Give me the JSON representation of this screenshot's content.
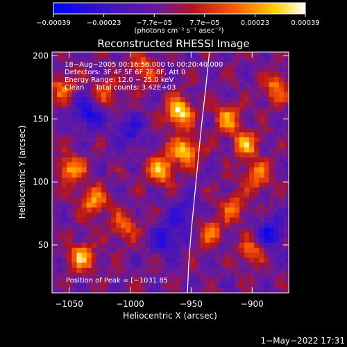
{
  "chart_data": {
    "type": "heatmap",
    "title": "Reconstructed RHESSI Image",
    "xlabel": "Heliocentric X (arcsec)",
    "ylabel": "Heliocentric Y (arcsec)",
    "xlim": [
      -1064,
      -870
    ],
    "ylim": [
      12,
      203
    ],
    "x_ticks": [
      -1050,
      -1000,
      -950,
      -900
    ],
    "x_tick_labels": [
      "−1050",
      "−1000",
      "−950",
      "−900"
    ],
    "y_ticks": [
      50,
      100,
      150,
      200
    ],
    "y_tick_labels": [
      "50",
      "100",
      "150",
      "200"
    ],
    "colorbar": {
      "range": [
        -0.00039,
        0.00039
      ],
      "tick_labels": [
        "−0.00039",
        "−0.00023",
        "−7.7e−05",
        "7.7e−05",
        "0.00023",
        "0.00039"
      ],
      "unit_label": "(photons cm⁻² s⁻¹ asec⁻²)",
      "colors": [
        "#0000ff",
        "#6a1a9a",
        "#b3131f",
        "#ff5a00",
        "#ffd000",
        "#ffffff"
      ]
    },
    "annotations": [
      "18−Aug−2005 00:16:56.000 to 00:20:40.000",
      "Detectors: 3F 4F 5F 6F 7F 8F, Att 0",
      "Energy Range: 12.0 − 25.0 keV",
      "Clean     Total counts: 3.42E+03"
    ],
    "peak_label": "Position of Peak = [−1031.85",
    "limb_curve": [
      [
        -935,
        203
      ],
      [
        -938,
        175
      ],
      [
        -942,
        140
      ],
      [
        -946,
        100
      ],
      [
        -950,
        60
      ],
      [
        -952,
        35
      ],
      [
        -953,
        12
      ]
    ],
    "hot_spots": [
      {
        "x": -960,
        "y": 155,
        "v": 1.0
      },
      {
        "x": -955,
        "y": 125,
        "v": 0.85
      },
      {
        "x": -975,
        "y": 110,
        "v": 0.8
      },
      {
        "x": -1048,
        "y": 110,
        "v": 0.75
      },
      {
        "x": -1030,
        "y": 85,
        "v": 0.7
      },
      {
        "x": -1040,
        "y": 40,
        "v": 0.75
      },
      {
        "x": -1005,
        "y": 65,
        "v": 0.55
      },
      {
        "x": -920,
        "y": 150,
        "v": 0.65
      },
      {
        "x": -905,
        "y": 130,
        "v": 0.7
      },
      {
        "x": -895,
        "y": 105,
        "v": 0.6
      },
      {
        "x": -915,
        "y": 80,
        "v": 0.55
      },
      {
        "x": -935,
        "y": 60,
        "v": 0.55
      },
      {
        "x": -900,
        "y": 45,
        "v": 0.5
      },
      {
        "x": -880,
        "y": 175,
        "v": 0.6
      },
      {
        "x": -1020,
        "y": 170,
        "v": 0.45
      },
      {
        "x": -1055,
        "y": 175,
        "v": 0.55
      },
      {
        "x": -990,
        "y": 190,
        "v": 0.5
      }
    ],
    "cold_spots": [
      {
        "x": -1035,
        "y": 155,
        "v": 0.55
      },
      {
        "x": -970,
        "y": 55,
        "v": 0.5
      },
      {
        "x": -885,
        "y": 60,
        "v": 0.55
      },
      {
        "x": -1000,
        "y": 140,
        "v": 0.4
      },
      {
        "x": -955,
        "y": 75,
        "v": 0.4
      }
    ]
  },
  "footer": {
    "timestamp": "1−May−2022 17:31"
  }
}
